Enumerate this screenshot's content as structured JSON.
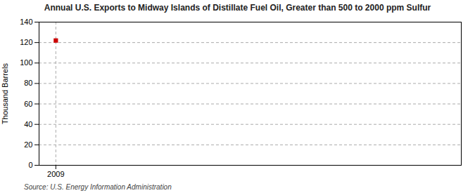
{
  "chart_data": {
    "type": "scatter",
    "title": "Annual U.S. Exports to Midway Islands of Distillate Fuel Oil, Greater than 500 to 2000 ppm Sulfur",
    "ylabel": "Thousand Barrels",
    "source": "Source: U.S. Energy Information Administration",
    "x": [
      2009
    ],
    "values": [
      122
    ],
    "color": "#cc0000",
    "marker": "square",
    "xlim": [
      2008.4,
      2023.5
    ],
    "xticks": [
      2009
    ],
    "ylim": [
      0,
      140
    ],
    "yticks": [
      0,
      20,
      40,
      60,
      80,
      100,
      120,
      140
    ],
    "grid": true
  }
}
